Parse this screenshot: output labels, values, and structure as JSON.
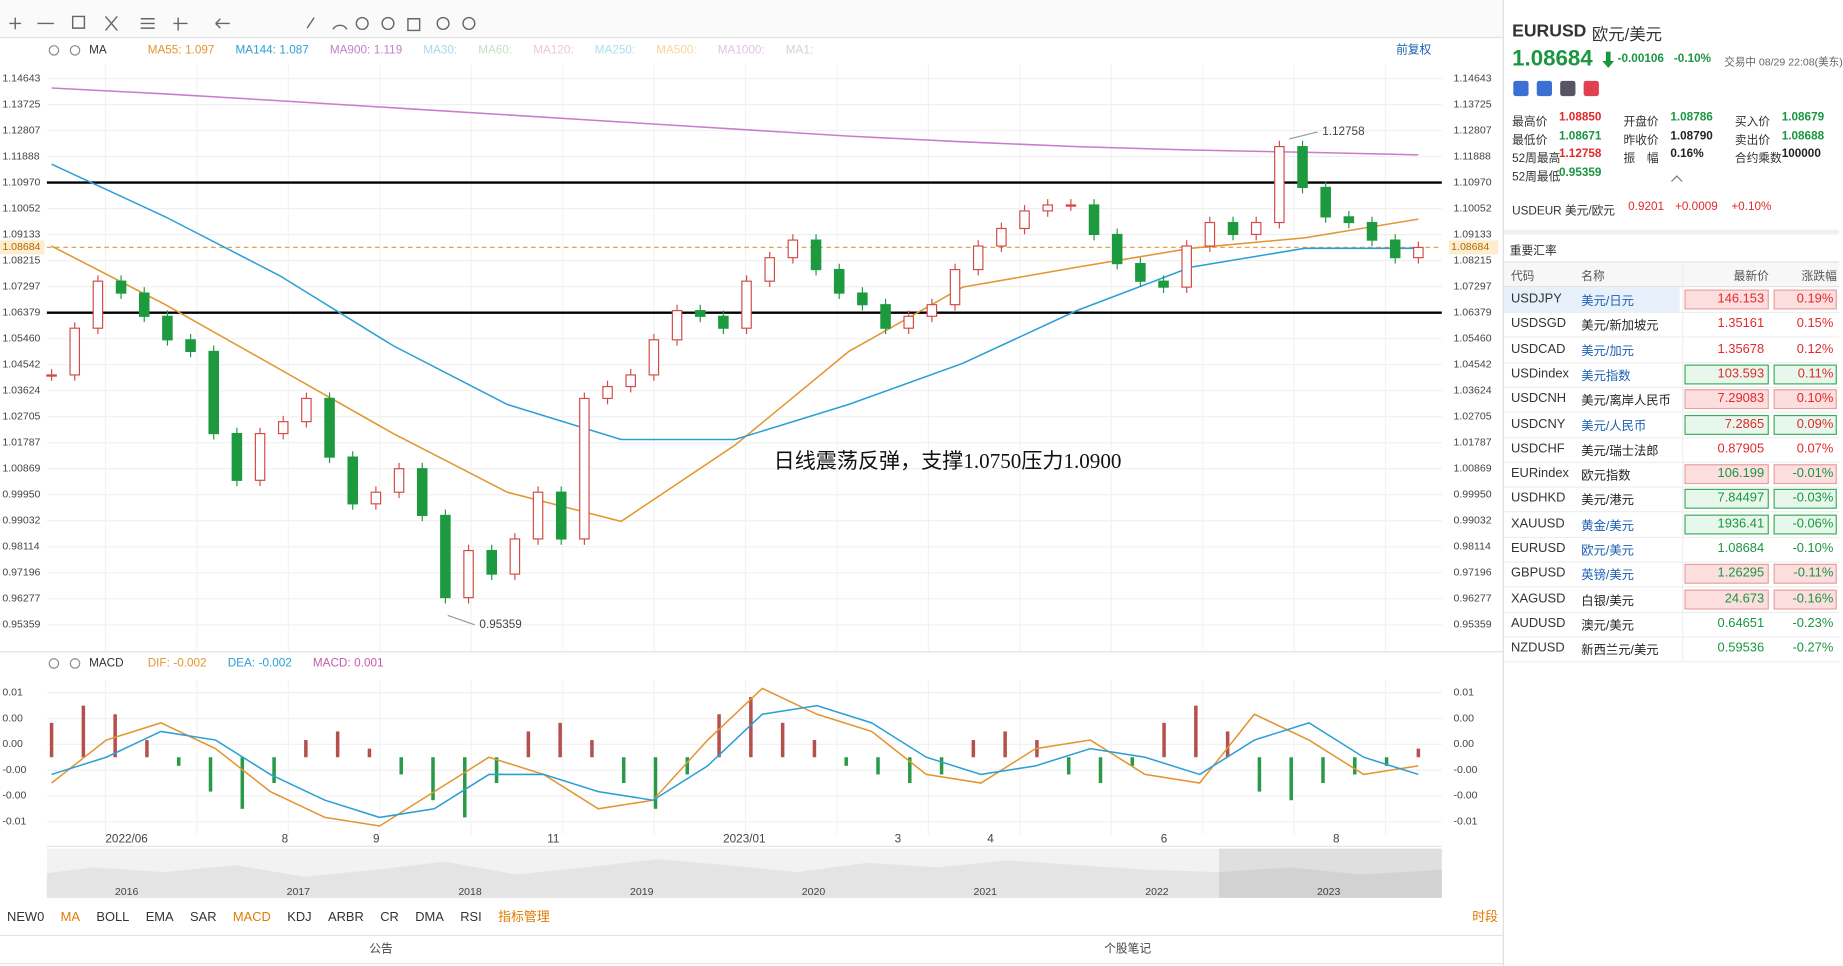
{
  "chart_data": [
    {
      "type": "candlestick",
      "indicator": "MA",
      "legend": [
        {
          "name": "MA55:",
          "value": 1.097,
          "color": "#e3952e",
          "values": [
            1.0873,
            1.0666,
            1.0439,
            1.0211,
            1.0004,
            0.9901,
            1.017,
            1.0501,
            1.0728,
            1.0798,
            1.0865,
            1.0902,
            1.0968
          ]
        },
        {
          "name": "MA144:",
          "value": 1.087,
          "color": "#2a9fd6",
          "values": [
            1.1162,
            1.0976,
            1.0769,
            1.0521,
            1.0314,
            1.019,
            1.019,
            1.0314,
            1.0459,
            1.0645,
            1.0798,
            1.0865,
            1.0865
          ]
        },
        {
          "name": "MA900:",
          "value": 1.119,
          "color": "#c77dcc",
          "values": [
            1.1431,
            1.141,
            1.1386,
            1.1361,
            1.1336,
            1.1311,
            1.1286,
            1.1261,
            1.1241,
            1.1224,
            1.1212,
            1.1204,
            1.1195
          ]
        },
        {
          "name": "MA30:",
          "color": "#a9d6ee"
        },
        {
          "name": "MA60:",
          "color": "#c3e3c3"
        },
        {
          "name": "MA120:",
          "color": "#f2c6cc"
        },
        {
          "name": "MA250:",
          "color": "#a8dff2"
        },
        {
          "name": "MA500:",
          "color": "#f5d79a"
        },
        {
          "name": "MA1000:",
          "color": "#e3c2e8"
        },
        {
          "name": "MA1:",
          "color": "#d3d3d3"
        }
      ],
      "restore": "前复权",
      "closes": [
        1.0418,
        1.0583,
        1.0749,
        1.0707,
        1.0625,
        1.0542,
        1.0501,
        1.0211,
        1.0046,
        1.0211,
        1.0253,
        1.0335,
        1.0128,
        0.9963,
        1.0004,
        1.0087,
        0.9922,
        0.9632,
        0.9798,
        0.9715,
        0.9839,
        1.0004,
        0.9839,
        1.0335,
        1.0377,
        1.0418,
        1.0542,
        1.0645,
        1.0625,
        1.0583,
        1.0749,
        1.0832,
        1.0894,
        1.079,
        1.0707,
        1.0666,
        1.0583,
        1.0625,
        1.0666,
        1.079,
        1.0873,
        1.0935,
        1.0997,
        1.1018,
        1.1018,
        1.0914,
        1.0811,
        1.0749,
        1.0728,
        1.0873,
        1.0956,
        1.0914,
        1.0956,
        1.1224,
        1.108,
        1.0976,
        1.0956,
        1.0894,
        1.0832,
        1.0868
      ],
      "up_color": "#d24a45",
      "down_color": "#1d9a3f",
      "ylim": [
        0.9445,
        1.1514
      ],
      "yticks": [
        1.14643,
        1.13725,
        1.12807,
        1.11888,
        {
          "value": 1.1097,
          "label": "1.10970"
        },
        1.10052,
        1.09133,
        1.08215,
        1.07297,
        1.06379,
        {
          "value": 1.0546,
          "label": "1.05460"
        },
        1.04542,
        1.03624,
        1.02705,
        1.01787,
        1.00869,
        {
          "value": 0.9995,
          "label": "0.99950"
        },
        0.99032,
        0.98114,
        0.97196,
        0.96277,
        0.95359
      ],
      "hlines": [
        1.1097,
        1.06379
      ],
      "current_price": 1.08684,
      "high": 1.12758,
      "low": 0.95359,
      "note": "日线震荡反弹，支撑1.0750压力1.0900",
      "grid": true,
      "xlabels": [
        "2022/06",
        "8",
        "9",
        "11",
        "2023/01",
        "3",
        "4",
        "6",
        "8"
      ],
      "navigator_years": [
        "2016",
        "2017",
        "2018",
        "2019",
        "2020",
        "2021",
        "2022",
        "2023"
      ]
    },
    {
      "type": "macd",
      "indicator": "MACD",
      "legend": [
        {
          "name": "DIF:",
          "value": -0.002,
          "color": "#e3952e",
          "values": [
            -0.003,
            0.002,
            0.004,
            0.001,
            -0.004,
            -0.007,
            -0.008,
            -0.004,
            0,
            -0.002,
            -0.006,
            -0.005,
            0.002,
            0.008,
            0.005,
            0.003,
            -0.002,
            -0.003,
            0.001,
            0.002,
            -0.002,
            -0.003,
            0.005,
            0.002,
            -0.002,
            -0.001
          ]
        },
        {
          "name": "DEA:",
          "value": -0.002,
          "color": "#2a9fd6",
          "values": [
            -0.002,
            0,
            0.003,
            0.002,
            -0.002,
            -0.005,
            -0.007,
            -0.006,
            -0.002,
            -0.002,
            -0.004,
            -0.005,
            -0.001,
            0.005,
            0.006,
            0.004,
            0,
            -0.002,
            -0.001,
            0.001,
            0,
            -0.002,
            0.002,
            0.004,
            0,
            -0.002
          ]
        },
        {
          "name": "MACD:",
          "value": 0.001,
          "color": "#c55aa8",
          "values": [
            0.004,
            0.006,
            0.005,
            0.002,
            -0.001,
            -0.004,
            -0.006,
            -0.003,
            0.002,
            0.003,
            0.001,
            -0.002,
            -0.005,
            -0.007,
            -0.003,
            0.003,
            0.004,
            0.002,
            -0.003,
            -0.006,
            -0.002,
            0.005,
            0.007,
            0.004,
            0.002,
            -0.001,
            -0.002,
            -0.003,
            -0.002,
            0.002,
            0.003,
            0.002,
            -0.002,
            -0.003,
            -0.001,
            0.004,
            0.006,
            0.003,
            -0.004,
            -0.005,
            -0.003,
            -0.002,
            -0.001,
            0.001
          ]
        }
      ],
      "up_color": "#b5504c",
      "down_color": "#2a9a4a",
      "ylim": [
        -0.009,
        0.009
      ],
      "yticks": [
        {
          "value": 0.0075,
          "label": "0.01"
        },
        {
          "value": 0.0045,
          "label": "0.00"
        },
        {
          "value": 0.0015,
          "label": "0.00"
        },
        {
          "value": -0.0015,
          "label": "-0.00"
        },
        {
          "value": -0.0045,
          "label": "-0.00"
        },
        {
          "value": -0.0075,
          "label": "-0.01"
        }
      ]
    }
  ],
  "tabs": [
    {
      "text": "NEW0"
    },
    {
      "text": "MA",
      "active": true
    },
    {
      "text": "BOLL"
    },
    {
      "text": "EMA"
    },
    {
      "text": "SAR"
    },
    {
      "text": "MACD",
      "active": true
    },
    {
      "text": "KDJ"
    },
    {
      "text": "ARBR"
    },
    {
      "text": "CR"
    },
    {
      "text": "DMA"
    },
    {
      "text": "RSI"
    },
    {
      "text": "指标管理",
      "active": true
    }
  ],
  "period": "时段",
  "footer": [
    "公告",
    "个股笔记"
  ],
  "quote": {
    "symbol": "EURUSD",
    "name": "欧元/美元",
    "price": "1.08684",
    "change": "-0.00106",
    "pct": "-0.10%",
    "status": "交易中 08/29 22:08(美东)",
    "stats": [
      {
        "label": "最高价",
        "value": "1.08850",
        "color": "red"
      },
      {
        "label": "开盘价",
        "value": "1.08786",
        "color": "green"
      },
      {
        "label": "买入价",
        "value": "1.08679",
        "color": "green"
      },
      {
        "label": "最低价",
        "value": "1.08671",
        "color": "green"
      },
      {
        "label": "昨收价",
        "value": "1.08790",
        "color": "dark"
      },
      {
        "label": "卖出价",
        "value": "1.08688",
        "color": "green"
      },
      {
        "label": "52周最高",
        "value": "1.12758",
        "color": "red"
      },
      {
        "label": "振　幅",
        "value": "0.16%",
        "color": "dark"
      },
      {
        "label": "合约乘数",
        "value": "100000",
        "color": "dark"
      },
      {
        "label": "52周最低",
        "value": "0.95359",
        "color": "green"
      }
    ],
    "inverse": {
      "symbol": "USDEUR 美元/欧元",
      "price": "0.9201",
      "change": "+0.0009",
      "pct": "+0.10%"
    }
  },
  "rates": {
    "title": "重要汇率",
    "headers": [
      "代码",
      "名称",
      "最新价",
      "涨跌幅"
    ],
    "rows": [
      {
        "code": "USDJPY",
        "name": "美元/日元",
        "last": "146.153",
        "pct": "0.19%",
        "color": "red",
        "box": "red",
        "link": true
      },
      {
        "code": "USDSGD",
        "name": "美元/新加坡元",
        "last": "1.35161",
        "pct": "0.15%",
        "color": "red"
      },
      {
        "code": "USDCAD",
        "name": "美元/加元",
        "last": "1.35678",
        "pct": "0.12%",
        "color": "red",
        "link": true
      },
      {
        "code": "USDindex",
        "name": "美元指数",
        "last": "103.593",
        "pct": "0.11%",
        "color": "red",
        "box": "green",
        "link": true
      },
      {
        "code": "USDCNH",
        "name": "美元/离岸人民币",
        "last": "7.29083",
        "pct": "0.10%",
        "color": "red",
        "box": "red"
      },
      {
        "code": "USDCNY",
        "name": "美元/人民币",
        "last": "7.2865",
        "pct": "0.09%",
        "color": "red",
        "box": "green",
        "link": true
      },
      {
        "code": "USDCHF",
        "name": "美元/瑞士法郎",
        "last": "0.87905",
        "pct": "0.07%",
        "color": "red"
      },
      {
        "code": "EURindex",
        "name": "欧元指数",
        "last": "106.199",
        "pct": "-0.01%",
        "color": "green",
        "box": "red"
      },
      {
        "code": "USDHKD",
        "name": "美元/港元",
        "last": "7.84497",
        "pct": "-0.03%",
        "color": "green",
        "box": "green"
      },
      {
        "code": "XAUUSD",
        "name": "黄金/美元",
        "last": "1936.41",
        "pct": "-0.06%",
        "color": "green",
        "box": "green",
        "link": true
      },
      {
        "code": "EURUSD",
        "name": "欧元/美元",
        "last": "1.08684",
        "pct": "-0.10%",
        "color": "green",
        "link": true
      },
      {
        "code": "GBPUSD",
        "name": "英镑/美元",
        "last": "1.26295",
        "pct": "-0.11%",
        "color": "green",
        "box": "red",
        "link": true
      },
      {
        "code": "XAGUSD",
        "name": "白银/美元",
        "last": "24.673",
        "pct": "-0.16%",
        "color": "green",
        "box": "red"
      },
      {
        "code": "AUDUSD",
        "name": "澳元/美元",
        "last": "0.64651",
        "pct": "-0.23%",
        "color": "green"
      },
      {
        "code": "NZDUSD",
        "name": "新西兰元/美元",
        "last": "0.59536",
        "pct": "-0.27%",
        "color": "green"
      }
    ]
  }
}
